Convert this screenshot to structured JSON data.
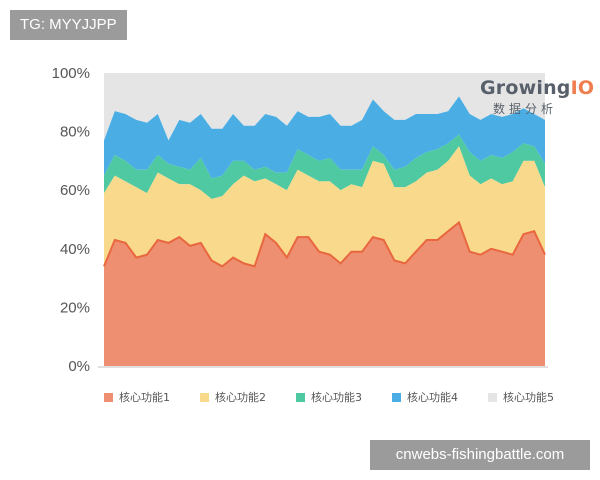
{
  "watermarks": {
    "top": "TG: MYYJJPP",
    "bottom": "cnwebs-fishingbattle.com"
  },
  "brand": {
    "logo_main_prefix": "Growing",
    "logo_main_accent": "IO",
    "logo_sub": "数据分析"
  },
  "chart_data": {
    "type": "area",
    "stacked": true,
    "x_count": 42,
    "ylim": [
      0,
      100
    ],
    "y_ticks": [
      "0%",
      "20%",
      "40%",
      "60%",
      "80%",
      "100%"
    ],
    "grid": false,
    "legend_position": "bottom",
    "series": [
      {
        "name": "核心功能1",
        "color": "#ef8f72",
        "cumulative": [
          34,
          43,
          42,
          37,
          38,
          43,
          42,
          44,
          41,
          42,
          36,
          34,
          37,
          35,
          34,
          45,
          42,
          37,
          44,
          44,
          39,
          38,
          35,
          39,
          39,
          44,
          43,
          36,
          35,
          39,
          43,
          43,
          46,
          49,
          39,
          38,
          40,
          39,
          38,
          45,
          46,
          38
        ]
      },
      {
        "name": "核心功能2",
        "color": "#f9d98c",
        "cumulative": [
          59,
          65,
          63,
          61,
          59,
          66,
          64,
          62,
          62,
          60,
          57,
          58,
          62,
          65,
          63,
          64,
          62,
          60,
          67,
          65,
          63,
          63,
          60,
          62,
          61,
          70,
          69,
          61,
          61,
          63,
          66,
          67,
          70,
          75,
          65,
          62,
          64,
          62,
          63,
          70,
          70,
          61
        ]
      },
      {
        "name": "核心功能3",
        "color": "#4fc9a1",
        "cumulative": [
          65,
          72,
          70,
          67,
          67,
          72,
          69,
          68,
          67,
          71,
          64,
          65,
          70,
          70,
          67,
          68,
          66,
          66,
          74,
          72,
          70,
          71,
          67,
          67,
          67,
          75,
          72,
          67,
          68,
          71,
          73,
          74,
          76,
          79,
          73,
          70,
          72,
          71,
          73,
          76,
          75,
          69
        ]
      },
      {
        "name": "核心功能4",
        "color": "#4aaee4",
        "cumulative": [
          77,
          87,
          86,
          84,
          83,
          86,
          77,
          84,
          83,
          86,
          81,
          81,
          86,
          82,
          82,
          86,
          85,
          82,
          87,
          85,
          85,
          86,
          82,
          82,
          84,
          91,
          87,
          84,
          84,
          86,
          86,
          86,
          87,
          92,
          86,
          84,
          86,
          85,
          86,
          88,
          86,
          84
        ]
      },
      {
        "name": "核心功能5",
        "color": "#e5e5e5",
        "cumulative": [
          100,
          100,
          100,
          100,
          100,
          100,
          100,
          100,
          100,
          100,
          100,
          100,
          100,
          100,
          100,
          100,
          100,
          100,
          100,
          100,
          100,
          100,
          100,
          100,
          100,
          100,
          100,
          100,
          100,
          100,
          100,
          100,
          100,
          100,
          100,
          100,
          100,
          100,
          100,
          100,
          100,
          100
        ]
      }
    ],
    "line_color": "#e8673f"
  }
}
